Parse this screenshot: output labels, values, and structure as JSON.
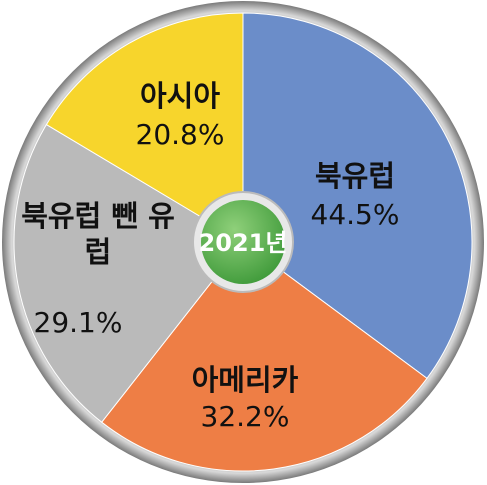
{
  "chart_data": {
    "type": "pie",
    "center_label": "2021년",
    "categories": [
      "북유럽",
      "아메리카",
      "북유럽 뺀 유럽",
      "아시아"
    ],
    "values": [
      44.5,
      32.2,
      29.1,
      20.8
    ],
    "value_labels": [
      "44.5%",
      "32.2%",
      "29.1%",
      "20.8%"
    ],
    "colors": [
      "#6b8dc9",
      "#ee7e45",
      "#bababa",
      "#f7d52c"
    ]
  }
}
